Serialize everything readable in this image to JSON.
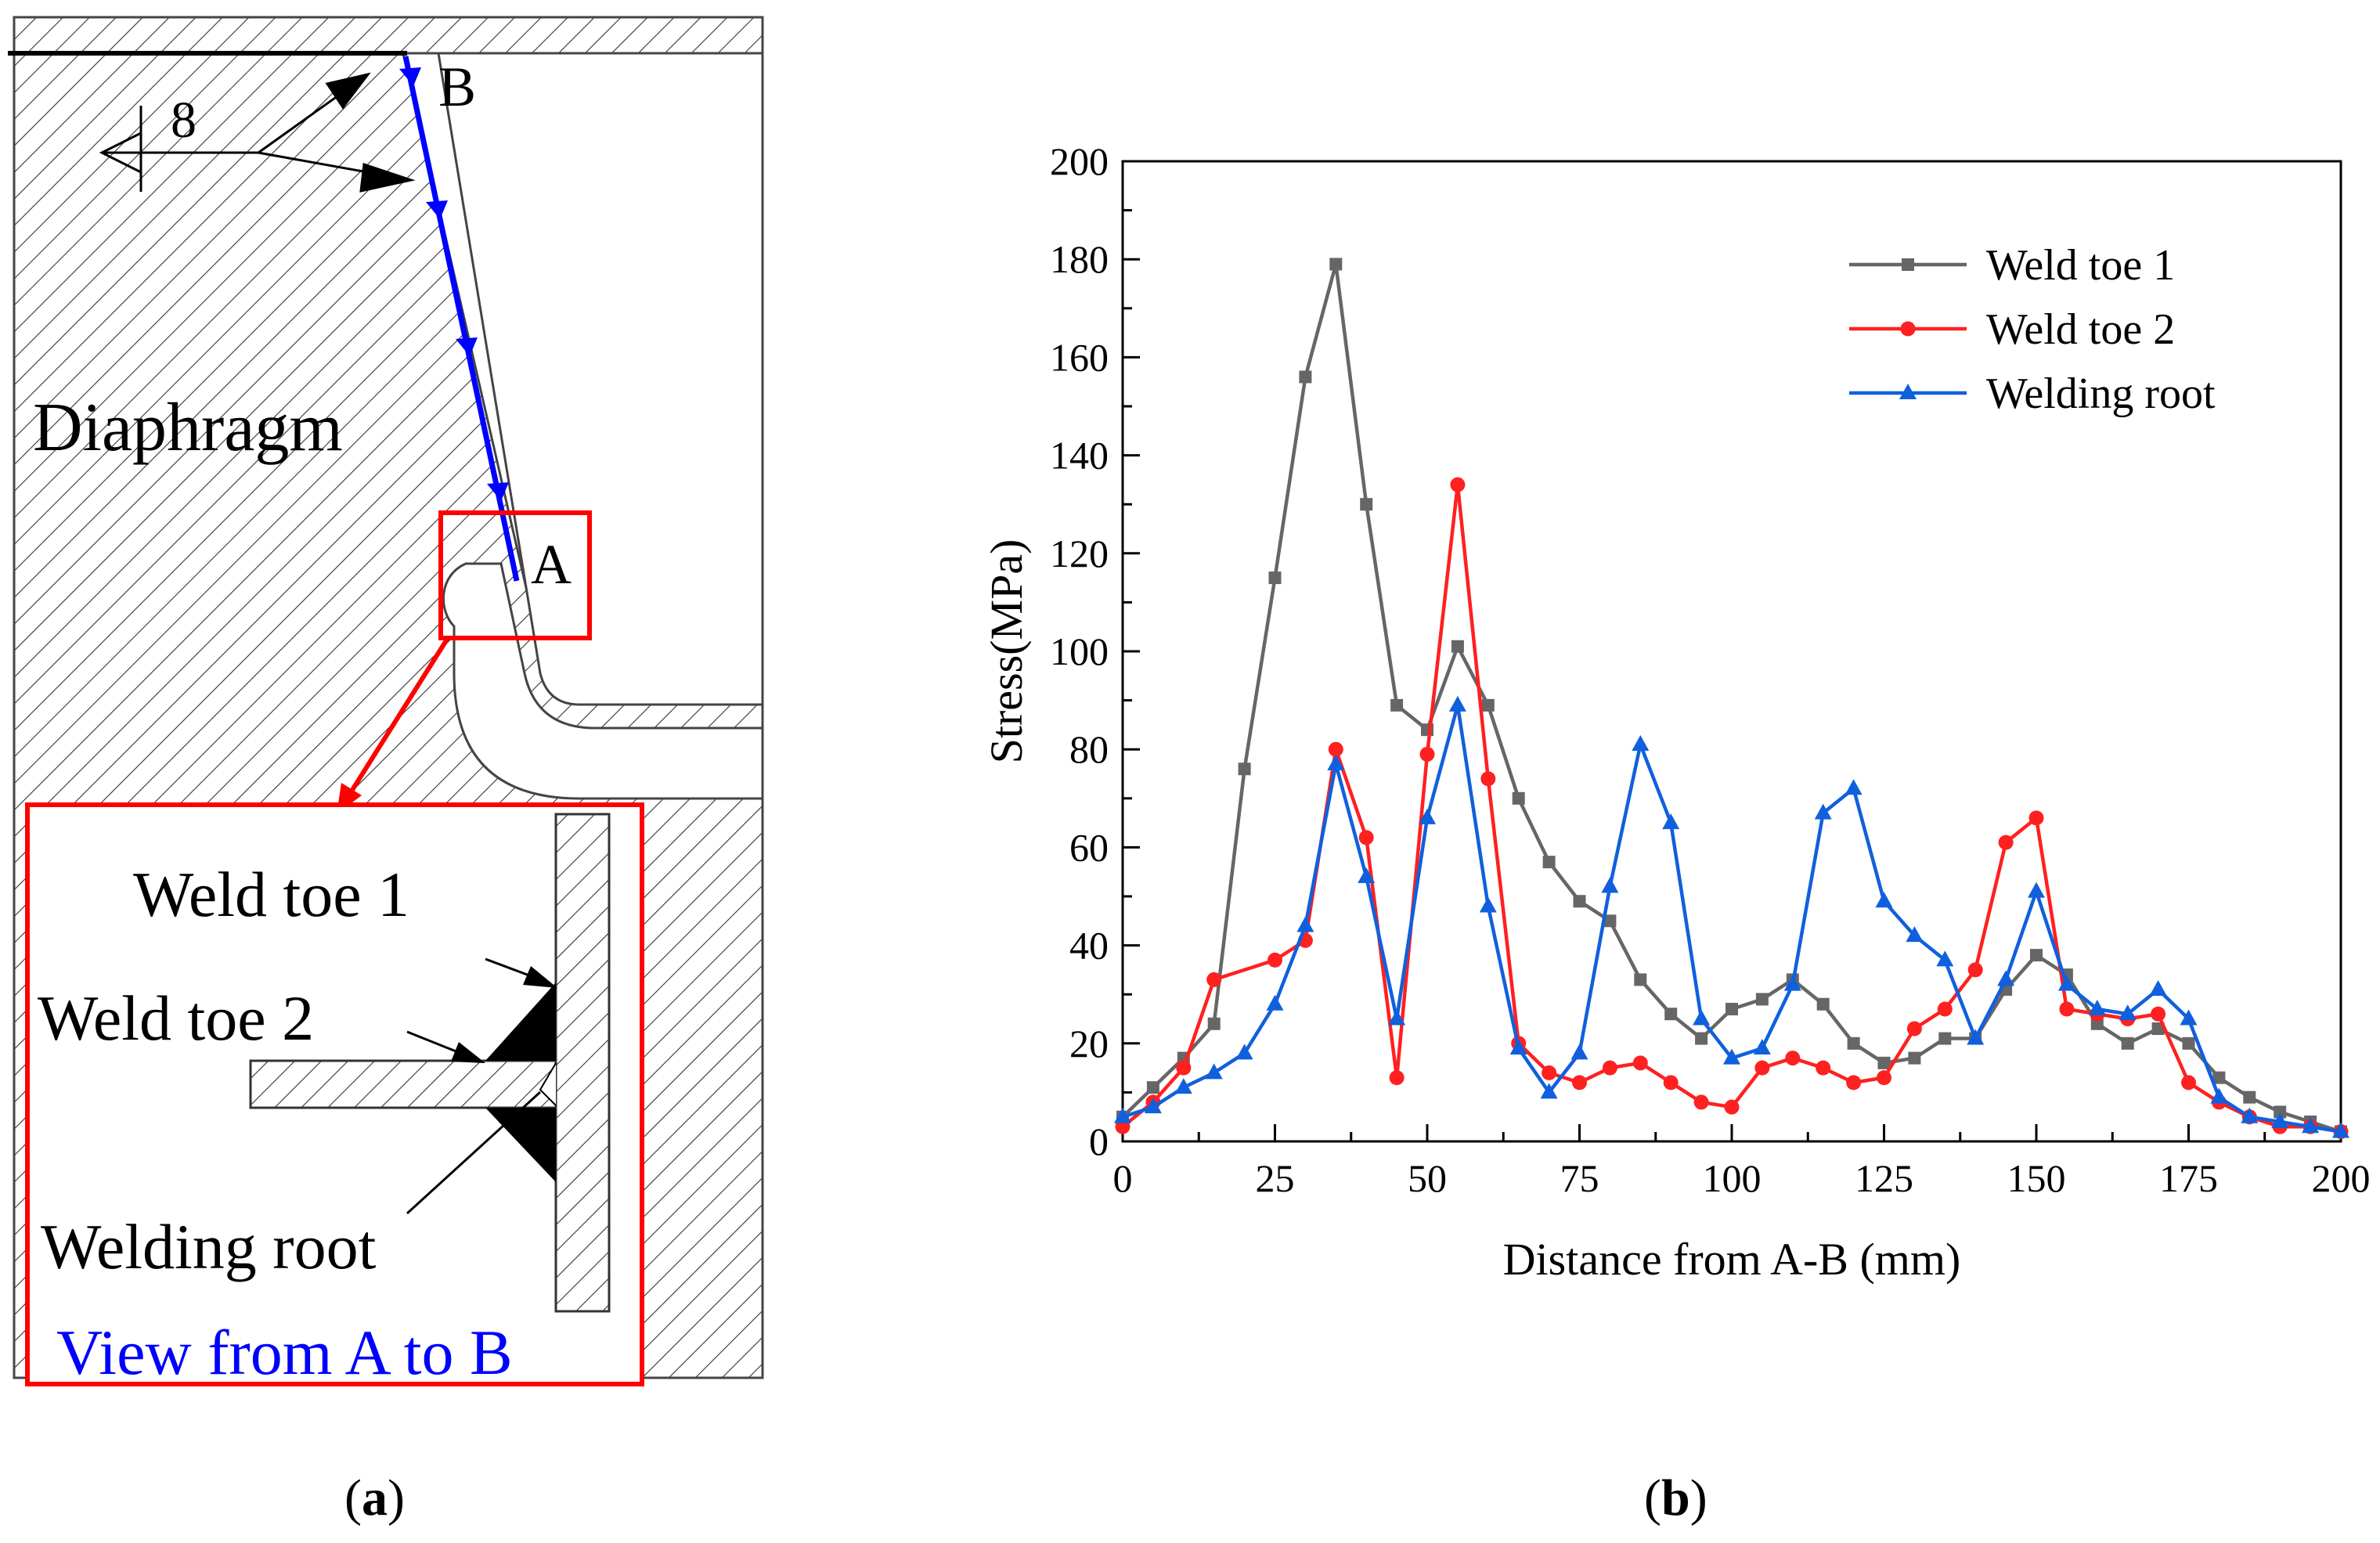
{
  "panel_a": {
    "caption_prefix": "(",
    "caption_letter": "a",
    "caption_suffix": ")",
    "label_diaphragm": "Diaphragm",
    "label_a": "A",
    "label_b": "B",
    "label_weld_size": "8",
    "label_weld_toe_1": "Weld toe 1",
    "label_weld_toe_2": "Weld toe 2",
    "label_welding_root": "Welding root",
    "label_view": "View from A to B",
    "colors": {
      "path": "#0000ff",
      "highlight": "#ff0000",
      "view_text": "#0000ff",
      "ink": "#000000"
    }
  },
  "panel_b": {
    "caption_prefix": "(",
    "caption_letter": "b",
    "caption_suffix": ")"
  },
  "chart_data": {
    "type": "line",
    "title": "",
    "xlabel": "Distance from A-B (mm)",
    "ylabel": "Stress(MPa)",
    "xlim": [
      0,
      200
    ],
    "ylim": [
      0,
      200
    ],
    "xticks": [
      0,
      25,
      50,
      75,
      100,
      125,
      150,
      175,
      200
    ],
    "yticks": [
      0,
      20,
      40,
      60,
      80,
      100,
      120,
      140,
      160,
      180,
      200
    ],
    "grid": false,
    "legend_position": "top-right",
    "series": [
      {
        "name": "Weld toe 1",
        "color": "#666666",
        "marker": "square",
        "x": [
          0,
          5,
          10,
          15,
          20,
          25,
          30,
          35,
          40,
          45,
          50,
          55,
          60,
          65,
          70,
          75,
          80,
          85,
          90,
          95,
          100,
          105,
          110,
          115,
          120,
          125,
          130,
          135,
          140,
          145,
          150,
          155,
          160,
          165,
          170,
          175,
          180,
          185,
          190,
          195,
          200
        ],
        "y": [
          5,
          11,
          17,
          24,
          76,
          115,
          156,
          179,
          130,
          89,
          84,
          101,
          89,
          70,
          57,
          49,
          45,
          33,
          26,
          21,
          27,
          29,
          33,
          28,
          20,
          16,
          17,
          21,
          21,
          31,
          38,
          34,
          24,
          20,
          23,
          20,
          13,
          9,
          6,
          4,
          2
        ]
      },
      {
        "name": "Weld toe 2",
        "color": "#ff2020",
        "marker": "circle",
        "x": [
          0,
          5,
          10,
          15,
          25,
          30,
          35,
          40,
          45,
          50,
          55,
          60,
          65,
          70,
          75,
          80,
          85,
          90,
          95,
          100,
          105,
          110,
          115,
          120,
          125,
          130,
          135,
          140,
          145,
          150,
          155,
          160,
          165,
          170,
          175,
          180,
          185,
          190,
          195,
          200
        ],
        "y": [
          3,
          8,
          15,
          33,
          37,
          41,
          80,
          62,
          13,
          79,
          134,
          74,
          20,
          14,
          12,
          15,
          16,
          12,
          8,
          7,
          15,
          17,
          15,
          12,
          13,
          23,
          27,
          35,
          61,
          66,
          27,
          26,
          25,
          26,
          12,
          8,
          5,
          3,
          3,
          2
        ]
      },
      {
        "name": "Welding root",
        "color": "#1060dd",
        "marker": "triangle",
        "x": [
          0,
          5,
          10,
          15,
          20,
          25,
          30,
          35,
          40,
          45,
          50,
          55,
          60,
          65,
          70,
          75,
          80,
          85,
          90,
          95,
          100,
          105,
          110,
          115,
          120,
          125,
          130,
          135,
          140,
          145,
          150,
          155,
          160,
          165,
          170,
          175,
          180,
          185,
          190,
          195,
          200
        ],
        "y": [
          5,
          7,
          11,
          14,
          18,
          28,
          44,
          77,
          54,
          25,
          66,
          89,
          48,
          19,
          10,
          18,
          52,
          81,
          65,
          25,
          17,
          19,
          32,
          67,
          72,
          49,
          42,
          37,
          21,
          33,
          51,
          32,
          27,
          26,
          31,
          25,
          9,
          5,
          4,
          3,
          2
        ]
      }
    ]
  }
}
